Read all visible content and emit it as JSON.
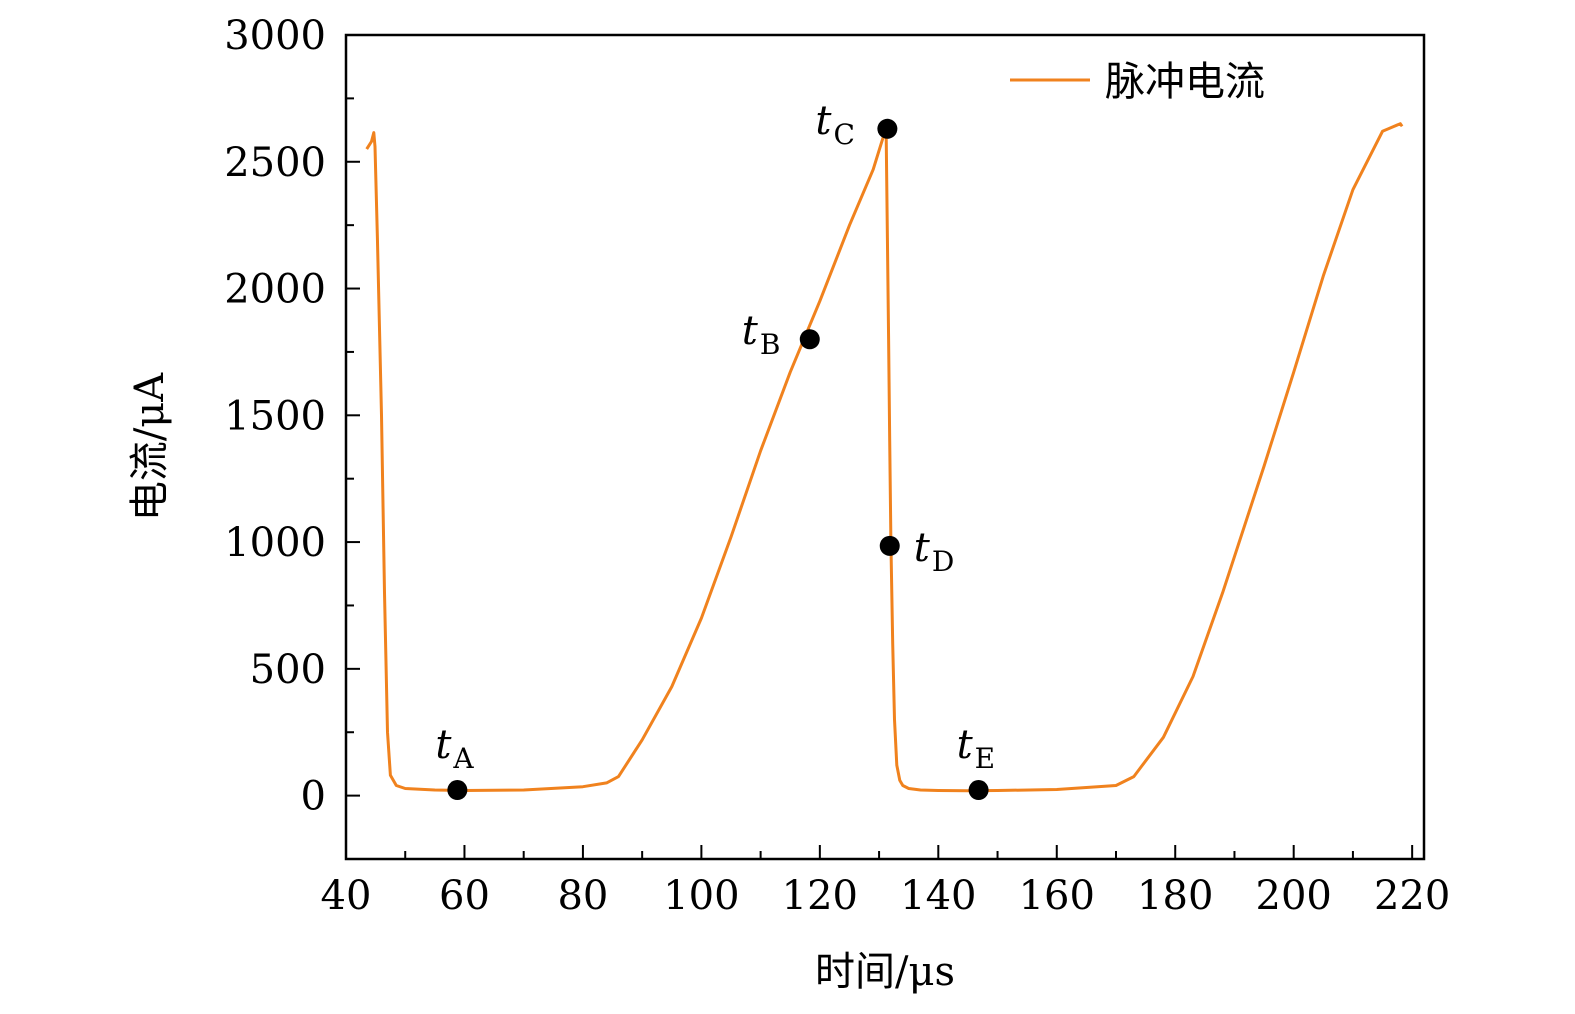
{
  "chart_data": {
    "type": "line",
    "xlabel": "时间/μs",
    "ylabel": "电流/μA",
    "xlim": [
      40,
      222
    ],
    "ylim": [
      -250,
      3000
    ],
    "xticks": [
      40,
      60,
      80,
      100,
      120,
      140,
      160,
      180,
      200,
      220
    ],
    "yticks": [
      0,
      500,
      1000,
      1500,
      2000,
      2500,
      3000
    ],
    "legend": {
      "position": "top-right",
      "entries": [
        "脉冲电流"
      ]
    },
    "grid": false,
    "series": [
      {
        "name": "脉冲电流",
        "color": "#f0821e",
        "x": [
          43.5,
          44.3,
          44.7,
          44.9,
          45.3,
          46.0,
          46.5,
          47.0,
          47.5,
          48.5,
          50,
          55,
          60,
          70,
          80,
          84,
          86,
          90,
          95,
          100,
          105,
          110,
          115,
          120,
          125,
          129,
          131,
          131.2,
          131.4,
          131.6,
          131.8,
          132.0,
          132.3,
          132.6,
          133.0,
          133.5,
          134,
          135,
          137,
          140,
          145,
          150,
          160,
          170,
          173,
          178,
          183,
          188,
          195,
          200,
          205,
          210,
          215,
          218,
          218.3
        ],
        "y": [
          2550,
          2580,
          2615,
          2560,
          2200,
          1500,
          800,
          250,
          80,
          40,
          28,
          22,
          20,
          22,
          35,
          50,
          75,
          220,
          430,
          700,
          1020,
          1360,
          1670,
          1950,
          2250,
          2470,
          2620,
          2600,
          2200,
          1800,
          1400,
          1000,
          600,
          300,
          120,
          60,
          40,
          28,
          22,
          20,
          19,
          20,
          24,
          40,
          75,
          230,
          470,
          800,
          1300,
          1670,
          2050,
          2390,
          2620,
          2650,
          2640
        ]
      }
    ],
    "annotations": [
      {
        "label": "t",
        "sub": "A",
        "x": 58.8,
        "y": 22
      },
      {
        "label": "t",
        "sub": "B",
        "x": 118.3,
        "y": 1800
      },
      {
        "label": "t",
        "sub": "C",
        "x": 131.4,
        "y": 2630
      },
      {
        "label": "t",
        "sub": "D",
        "x": 131.8,
        "y": 985
      },
      {
        "label": "t",
        "sub": "E",
        "x": 146.8,
        "y": 22
      }
    ]
  }
}
